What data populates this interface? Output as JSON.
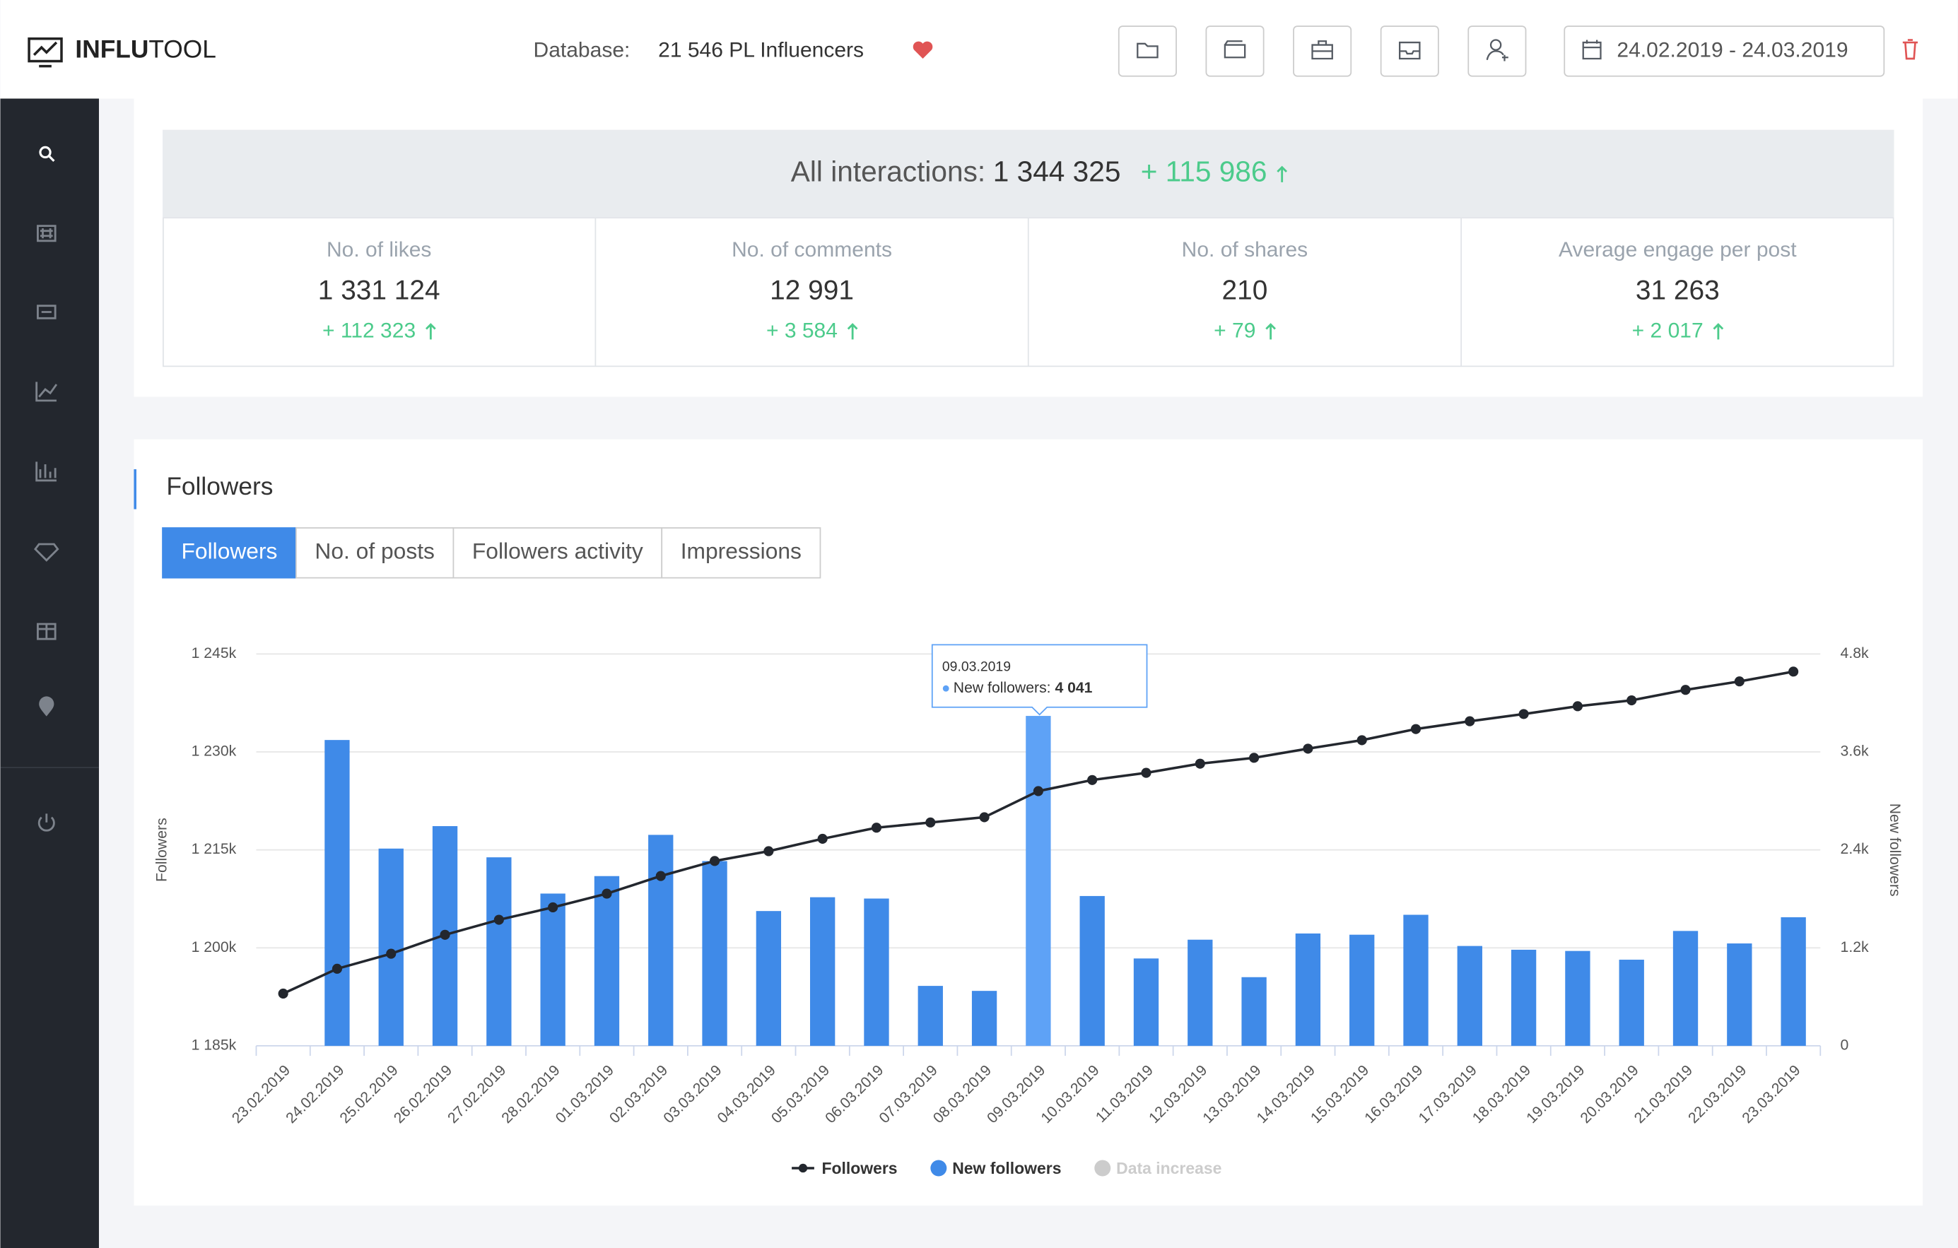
{
  "header": {
    "logo": [
      "INFLU",
      "TOOL"
    ],
    "database_label": "Database:",
    "database_value": "21 546 PL Influencers",
    "date_range": "24.02.2019 - 24.03.2019"
  },
  "stats": {
    "label": "All interactions:",
    "value": "1 344 325",
    "delta": "+ 115 986",
    "cards": [
      {
        "label": "No. of likes",
        "value": "1 331 124",
        "delta": "+ 112 323"
      },
      {
        "label": "No. of comments",
        "value": "12 991",
        "delta": "+ 3 584"
      },
      {
        "label": "No. of shares",
        "value": "210",
        "delta": "+ 79"
      },
      {
        "label": "Average engage per post",
        "value": "31 263",
        "delta": "+ 2 017"
      }
    ]
  },
  "section": {
    "title": "Followers",
    "tabs": [
      "Followers",
      "No. of posts",
      "Followers activity",
      "Impressions"
    ],
    "active_tab": 0
  },
  "chart_data": {
    "type": "bar-line",
    "ylabel": "Followers",
    "y2label": "New followers",
    "categories": [
      "23.02.2019",
      "24.02.2019",
      "25.02.2019",
      "26.02.2019",
      "27.02.2019",
      "28.02.2019",
      "01.03.2019",
      "02.03.2019",
      "03.03.2019",
      "04.03.2019",
      "05.03.2019",
      "06.03.2019",
      "07.03.2019",
      "08.03.2019",
      "09.03.2019",
      "10.03.2019",
      "11.03.2019",
      "12.03.2019",
      "13.03.2019",
      "14.03.2019",
      "15.03.2019",
      "16.03.2019",
      "17.03.2019",
      "18.03.2019",
      "19.03.2019",
      "20.03.2019",
      "21.03.2019",
      "22.03.2019",
      "23.03.2019"
    ],
    "series": [
      {
        "name": "Followers",
        "type": "line",
        "color": "#23272e",
        "values": [
          1193000,
          1196800,
          1199100,
          1202000,
          1204300,
          1206200,
          1208300,
          1211000,
          1213300,
          1214800,
          1216700,
          1218400,
          1219200,
          1220000,
          1224000,
          1225700,
          1226800,
          1228200,
          1229100,
          1230500,
          1231800,
          1233500,
          1234700,
          1235800,
          1237000,
          1237900,
          1239500,
          1240800,
          1242300
        ]
      },
      {
        "name": "New followers",
        "type": "bar",
        "axis": "y2",
        "color": "#3f8ae8",
        "values": [
          null,
          3746,
          2416,
          2691,
          2309,
          1865,
          2079,
          2584,
          2263,
          1651,
          1820,
          1804,
          734,
          673,
          4041,
          1835,
          1070,
          1300,
          841,
          1376,
          1361,
          1605,
          1223,
          1177,
          1162,
          1055,
          1407,
          1254,
          1575
        ]
      },
      {
        "name": "Data increase",
        "type": "bar",
        "axis": "y2",
        "color": "#cccccc",
        "values": [
          null,
          null,
          null,
          null,
          null,
          null,
          null,
          null,
          null,
          null,
          null,
          null,
          null,
          null,
          null,
          null,
          null,
          null,
          null,
          null,
          null,
          null,
          null,
          null,
          null,
          null,
          null,
          null,
          null
        ]
      }
    ],
    "highlight": {
      "index": 14,
      "color": "#5ea2f6"
    },
    "tooltip": {
      "title": "09.03.2019",
      "label": "New followers: ",
      "value_label": "4 041"
    },
    "ylim": [
      1185000,
      1245000
    ],
    "yticks": [
      {
        "value": 1185000,
        "label": "1 185k"
      },
      {
        "value": 1200000,
        "label": "1 200k"
      },
      {
        "value": 1215000,
        "label": "1 215k"
      },
      {
        "value": 1230000,
        "label": "1 230k"
      },
      {
        "value": 1245000,
        "label": "1 245k"
      }
    ],
    "y2lim": [
      0,
      4800
    ],
    "y2ticks": [
      0,
      {
        "value": 1200,
        "label": "1.2k"
      },
      {
        "value": 2400,
        "label": "2.4k"
      },
      {
        "value": 3600,
        "label": "3.6k"
      },
      {
        "value": 4800,
        "label": "4.8k"
      }
    ],
    "grid": true,
    "legend": "bottom"
  }
}
